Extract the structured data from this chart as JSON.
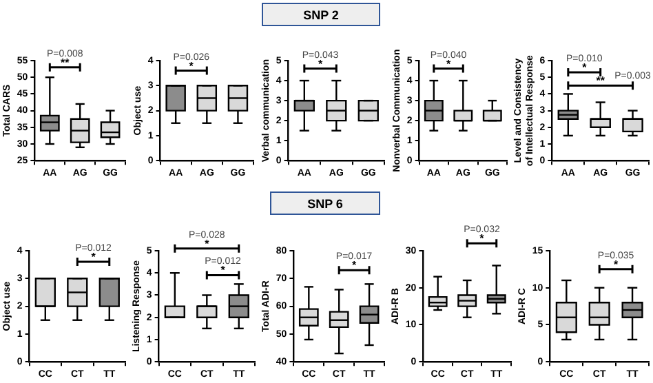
{
  "chart_data": [
    {
      "type": "other",
      "title": "SNP 2"
    },
    {
      "type": "box",
      "ylabel": "Total CARS",
      "categories": [
        "AA",
        "AG",
        "GG"
      ],
      "ylim": [
        25,
        55
      ],
      "yticks": [
        25,
        30,
        35,
        40,
        45,
        50,
        55
      ],
      "colors": [
        "#8c8c8c",
        "#d9d9d9",
        "#d9d9d9"
      ],
      "boxes": [
        {
          "low": 30,
          "q1": 34,
          "median": 36.5,
          "q3": 38.5,
          "high": 50
        },
        {
          "low": 29,
          "q1": 30.5,
          "median": 34,
          "q3": 37.5,
          "high": 42
        },
        {
          "low": 30,
          "q1": 32,
          "median": 33.5,
          "q3": 36.5,
          "high": 40
        }
      ],
      "annotations": [
        "P=0.008",
        "**"
      ]
    },
    {
      "type": "box",
      "ylabel": "Object use",
      "categories": [
        "AA",
        "AG",
        "GG"
      ],
      "ylim": [
        0,
        4
      ],
      "yticks": [
        0,
        1,
        2,
        3,
        4
      ],
      "colors": [
        "#8c8c8c",
        "#d9d9d9",
        "#d9d9d9"
      ],
      "boxes": [
        {
          "low": 1.5,
          "q1": 2,
          "median": 3,
          "q3": 3,
          "high": 3
        },
        {
          "low": 1.5,
          "q1": 2,
          "median": 2.5,
          "q3": 3,
          "high": 3
        },
        {
          "low": 1.5,
          "q1": 2,
          "median": 2.5,
          "q3": 3,
          "high": 3
        }
      ],
      "annotations": [
        "P=0.026",
        "*"
      ]
    },
    {
      "type": "box",
      "ylabel": "Verbal communication",
      "categories": [
        "AA",
        "AG",
        "GG"
      ],
      "ylim": [
        0,
        5
      ],
      "yticks": [
        0,
        1,
        2,
        3,
        4,
        5
      ],
      "colors": [
        "#8c8c8c",
        "#d9d9d9",
        "#d9d9d9"
      ],
      "boxes": [
        {
          "low": 1.5,
          "q1": 2.5,
          "median": 3,
          "q3": 3,
          "high": 4
        },
        {
          "low": 1.5,
          "q1": 2,
          "median": 2.5,
          "q3": 3,
          "high": 4
        },
        {
          "low": 2,
          "q1": 2,
          "median": 2.5,
          "q3": 3,
          "high": 3
        }
      ],
      "annotations": [
        "P=0.043",
        "*"
      ]
    },
    {
      "type": "box",
      "ylabel": "Nonverbal Communication",
      "categories": [
        "AA",
        "AG",
        "GG"
      ],
      "ylim": [
        0,
        5
      ],
      "yticks": [
        0,
        1,
        2,
        3,
        4,
        5
      ],
      "colors": [
        "#8c8c8c",
        "#d9d9d9",
        "#d9d9d9"
      ],
      "boxes": [
        {
          "low": 1.5,
          "q1": 2,
          "median": 2.5,
          "q3": 3,
          "high": 4
        },
        {
          "low": 1.5,
          "q1": 2,
          "median": 2,
          "q3": 2.5,
          "high": 4
        },
        {
          "low": 2,
          "q1": 2,
          "median": 2,
          "q3": 2.5,
          "high": 3
        }
      ],
      "annotations": [
        "P=0.040",
        "*"
      ]
    },
    {
      "type": "box",
      "ylabel": "Level and Consistency of Intellectual Response",
      "categories": [
        "AA",
        "AG",
        "GG"
      ],
      "ylim": [
        0,
        6
      ],
      "yticks": [
        0,
        1,
        2,
        3,
        4,
        5,
        6
      ],
      "colors": [
        "#8c8c8c",
        "#d9d9d9",
        "#d9d9d9"
      ],
      "boxes": [
        {
          "low": 1.5,
          "q1": 2.5,
          "median": 2.75,
          "q3": 3,
          "high": 4
        },
        {
          "low": 1.5,
          "q1": 2,
          "median": 2.5,
          "q3": 2.5,
          "high": 3.5
        },
        {
          "low": 1.5,
          "q1": 1.75,
          "median": 2.5,
          "q3": 2.5,
          "high": 3
        }
      ],
      "annotations": [
        "P=0.010",
        "*",
        "P=0.003",
        "**"
      ]
    },
    {
      "type": "other",
      "title": "SNP 6"
    },
    {
      "type": "box",
      "ylabel": "Object use",
      "categories": [
        "CC",
        "CT",
        "TT"
      ],
      "ylim": [
        0,
        4
      ],
      "yticks": [
        0,
        1,
        2,
        3,
        4
      ],
      "colors": [
        "#d9d9d9",
        "#d9d9d9",
        "#8c8c8c"
      ],
      "boxes": [
        {
          "low": 1.5,
          "q1": 2,
          "median": 2,
          "q3": 3,
          "high": 3
        },
        {
          "low": 1.5,
          "q1": 2,
          "median": 2.5,
          "q3": 3,
          "high": 3
        },
        {
          "low": 1.5,
          "q1": 2,
          "median": 3,
          "q3": 3,
          "high": 3
        }
      ],
      "annotations": [
        "P=0.012",
        "*"
      ]
    },
    {
      "type": "box",
      "ylabel": "Listening Response",
      "categories": [
        "CC",
        "CT",
        "TT"
      ],
      "ylim": [
        0,
        5
      ],
      "yticks": [
        0,
        1,
        2,
        3,
        4,
        5
      ],
      "colors": [
        "#d9d9d9",
        "#d9d9d9",
        "#8c8c8c"
      ],
      "boxes": [
        {
          "low": 2,
          "q1": 2,
          "median": 2,
          "q3": 2.5,
          "high": 4
        },
        {
          "low": 1.5,
          "q1": 2,
          "median": 2.5,
          "q3": 2.5,
          "high": 3
        },
        {
          "low": 1.5,
          "q1": 2,
          "median": 2.5,
          "q3": 3,
          "high": 3.5
        }
      ],
      "annotations": [
        "P=0.028",
        "*",
        "P=0.012",
        "*"
      ]
    },
    {
      "type": "box",
      "ylabel": "Total ADI-R",
      "categories": [
        "CC",
        "CT",
        "TT"
      ],
      "ylim": [
        40,
        80
      ],
      "yticks": [
        40,
        50,
        60,
        70,
        80
      ],
      "colors": [
        "#d9d9d9",
        "#d9d9d9",
        "#8c8c8c"
      ],
      "boxes": [
        {
          "low": 48,
          "q1": 53,
          "median": 56,
          "q3": 59,
          "high": 67
        },
        {
          "low": 43,
          "q1": 52.5,
          "median": 55,
          "q3": 58,
          "high": 66
        },
        {
          "low": 46,
          "q1": 54,
          "median": 57,
          "q3": 60,
          "high": 68
        }
      ],
      "annotations": [
        "P=0.017",
        "*"
      ]
    },
    {
      "type": "box",
      "ylabel": "ADI-R B",
      "categories": [
        "CC",
        "CT",
        "TT"
      ],
      "ylim": [
        0,
        30
      ],
      "yticks": [
        0,
        10,
        20,
        30
      ],
      "colors": [
        "#d9d9d9",
        "#d9d9d9",
        "#8c8c8c"
      ],
      "boxes": [
        {
          "low": 14,
          "q1": 15,
          "median": 16,
          "q3": 17.5,
          "high": 23
        },
        {
          "low": 12,
          "q1": 15,
          "median": 16.5,
          "q3": 18,
          "high": 22
        },
        {
          "low": 13,
          "q1": 16,
          "median": 17,
          "q3": 18,
          "high": 26
        }
      ],
      "annotations": [
        "P=0.032",
        "*"
      ]
    },
    {
      "type": "box",
      "ylabel": "ADI-R C",
      "categories": [
        "CC",
        "CT",
        "TT"
      ],
      "ylim": [
        0,
        15
      ],
      "yticks": [
        0,
        5,
        10,
        15
      ],
      "colors": [
        "#d9d9d9",
        "#d9d9d9",
        "#8c8c8c"
      ],
      "boxes": [
        {
          "low": 3,
          "q1": 4,
          "median": 6,
          "q3": 8,
          "high": 11
        },
        {
          "low": 3,
          "q1": 5,
          "median": 6,
          "q3": 8,
          "high": 10
        },
        {
          "low": 3,
          "q1": 6,
          "median": 7,
          "q3": 8,
          "high": 10
        }
      ],
      "annotations": [
        "P=0.035",
        "*"
      ]
    }
  ]
}
